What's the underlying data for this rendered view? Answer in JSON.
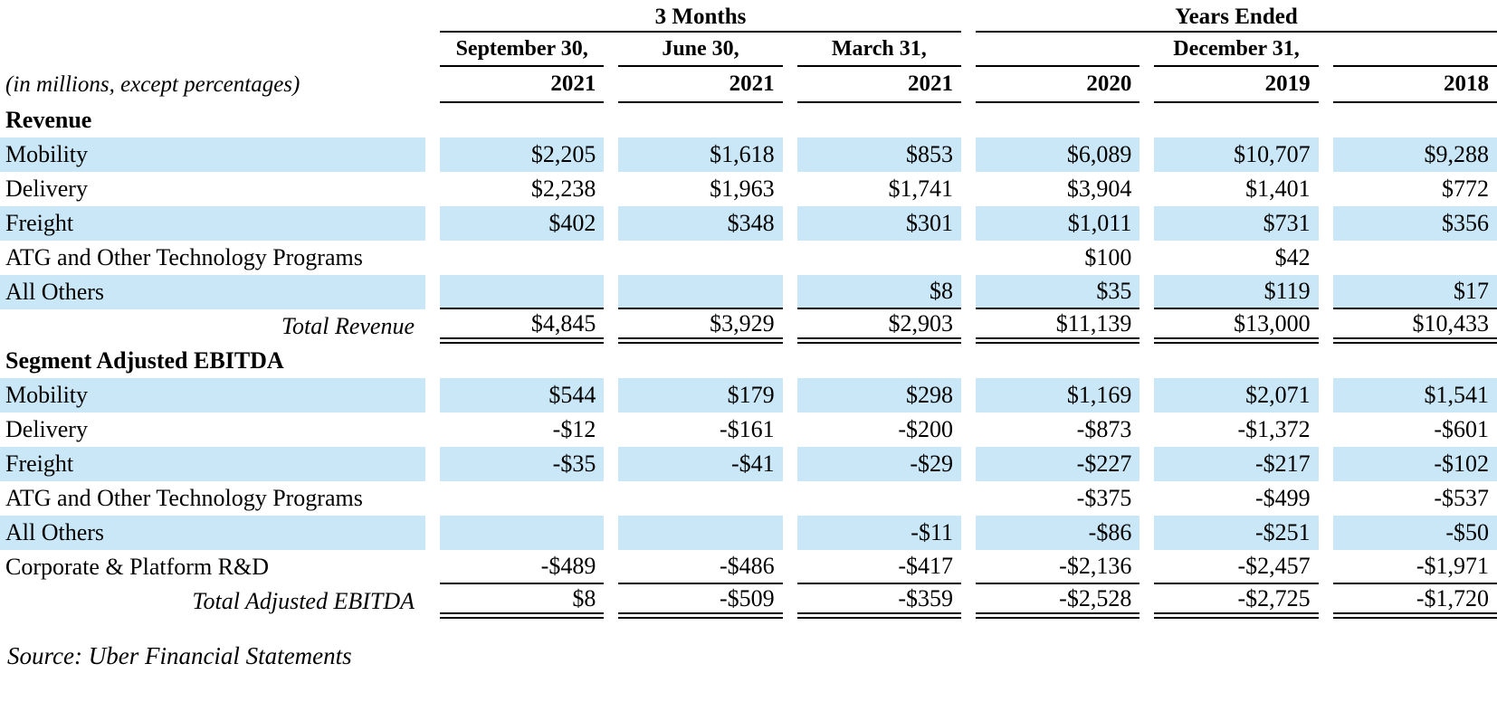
{
  "table": {
    "units_note": "(in millions, except percentages)",
    "groups": [
      "3 Months",
      "Years Ended"
    ],
    "period_headers": [
      "September 30,",
      "June 30,",
      "March 31,",
      "December 31,"
    ],
    "year_headers": [
      "2021",
      "2021",
      "2021",
      "2020",
      "2019",
      "2018"
    ],
    "highlight_color": "#cae7f7",
    "sections": [
      {
        "title": "Revenue",
        "rows": [
          {
            "label": "Mobility",
            "values": [
              "$2,205",
              "$1,618",
              "$853",
              "$6,089",
              "$10,707",
              "$9,288"
            ]
          },
          {
            "label": "Delivery",
            "values": [
              "$2,238",
              "$1,963",
              "$1,741",
              "$3,904",
              "$1,401",
              "$772"
            ]
          },
          {
            "label": "Freight",
            "values": [
              "$402",
              "$348",
              "$301",
              "$1,011",
              "$731",
              "$356"
            ]
          },
          {
            "label": "ATG and Other Technology Programs",
            "values": [
              "",
              "",
              "",
              "$100",
              "$42",
              ""
            ]
          },
          {
            "label": "All Others",
            "values": [
              "",
              "",
              "$8",
              "$35",
              "$119",
              "$17"
            ]
          }
        ],
        "total": {
          "label": "Total Revenue",
          "values": [
            "$4,845",
            "$3,929",
            "$2,903",
            "$11,139",
            "$13,000",
            "$10,433"
          ]
        }
      },
      {
        "title": "Segment Adjusted EBITDA",
        "rows": [
          {
            "label": "Mobility",
            "values": [
              "$544",
              "$179",
              "$298",
              "$1,169",
              "$2,071",
              "$1,541"
            ]
          },
          {
            "label": "Delivery",
            "values": [
              "-$12",
              "-$161",
              "-$200",
              "-$873",
              "-$1,372",
              "-$601"
            ]
          },
          {
            "label": "Freight",
            "values": [
              "-$35",
              "-$41",
              "-$29",
              "-$227",
              "-$217",
              "-$102"
            ]
          },
          {
            "label": "ATG and Other Technology Programs",
            "values": [
              "",
              "",
              "",
              "-$375",
              "-$499",
              "-$537"
            ]
          },
          {
            "label": "All Others",
            "values": [
              "",
              "",
              "-$11",
              "-$86",
              "-$251",
              "-$50"
            ]
          },
          {
            "label": "Corporate & Platform R&D",
            "values": [
              "-$489",
              "-$486",
              "-$417",
              "-$2,136",
              "-$2,457",
              "-$1,971"
            ]
          }
        ],
        "total": {
          "label": "Total Adjusted EBITDA",
          "values": [
            "$8",
            "-$509",
            "-$359",
            "-$2,528",
            "-$2,725",
            "-$1,720"
          ]
        }
      }
    ],
    "source": "Source: Uber Financial Statements"
  },
  "chart_data": {
    "type": "table",
    "units": "in millions, except percentages",
    "column_groups": [
      {
        "label": "3 Months",
        "columns": [
          0,
          1,
          2
        ]
      },
      {
        "label": "Years Ended December 31,",
        "columns": [
          3,
          4,
          5
        ]
      }
    ],
    "columns": [
      "September 30, 2021",
      "June 30, 2021",
      "March 31, 2021",
      "2020",
      "2019",
      "2018"
    ],
    "sections": [
      {
        "name": "Revenue",
        "rows": [
          {
            "label": "Mobility",
            "values": [
              2205,
              1618,
              853,
              6089,
              10707,
              9288
            ]
          },
          {
            "label": "Delivery",
            "values": [
              2238,
              1963,
              1741,
              3904,
              1401,
              772
            ]
          },
          {
            "label": "Freight",
            "values": [
              402,
              348,
              301,
              1011,
              731,
              356
            ]
          },
          {
            "label": "ATG and Other Technology Programs",
            "values": [
              null,
              null,
              null,
              100,
              42,
              null
            ]
          },
          {
            "label": "All Others",
            "values": [
              null,
              null,
              8,
              35,
              119,
              17
            ]
          },
          {
            "label": "Total Revenue",
            "values": [
              4845,
              3929,
              2903,
              11139,
              13000,
              10433
            ]
          }
        ]
      },
      {
        "name": "Segment Adjusted EBITDA",
        "rows": [
          {
            "label": "Mobility",
            "values": [
              544,
              179,
              298,
              1169,
              2071,
              1541
            ]
          },
          {
            "label": "Delivery",
            "values": [
              -12,
              -161,
              -200,
              -873,
              -1372,
              -601
            ]
          },
          {
            "label": "Freight",
            "values": [
              -35,
              -41,
              -29,
              -227,
              -217,
              -102
            ]
          },
          {
            "label": "ATG and Other Technology Programs",
            "values": [
              null,
              null,
              null,
              -375,
              -499,
              -537
            ]
          },
          {
            "label": "All Others",
            "values": [
              null,
              null,
              -11,
              -86,
              -251,
              -50
            ]
          },
          {
            "label": "Corporate & Platform R&D",
            "values": [
              -489,
              -486,
              -417,
              -2136,
              -2457,
              -1971
            ]
          },
          {
            "label": "Total Adjusted EBITDA",
            "values": [
              8,
              -509,
              -359,
              -2528,
              -2725,
              -1720
            ]
          }
        ]
      }
    ],
    "source": "Source: Uber Financial Statements"
  }
}
